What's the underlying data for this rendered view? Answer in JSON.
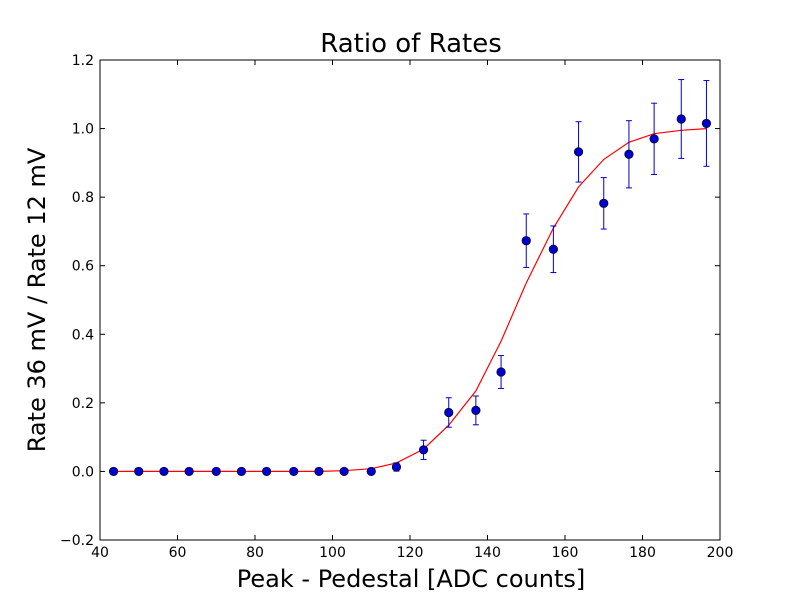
{
  "chart_data": {
    "type": "scatter",
    "title": "Ratio of Rates",
    "xlabel": "Peak - Pedestal [ADC counts]",
    "ylabel": "Rate 36 mV / Rate 12 mV",
    "xlim": [
      40,
      200
    ],
    "ylim": [
      -0.2,
      1.2
    ],
    "xticks": [
      "40",
      "60",
      "80",
      "100",
      "120",
      "140",
      "160",
      "180",
      "200"
    ],
    "yticks": [
      "−0.2",
      "0.0",
      "0.2",
      "0.4",
      "0.6",
      "0.8",
      "1.0",
      "1.2"
    ],
    "grid": false,
    "series": [
      {
        "kind": "points-with-error-bars",
        "color": "#0000cc",
        "errbar_color": "#0000cc",
        "x": [
          43.5,
          50,
          56.5,
          63,
          70,
          76.5,
          83,
          90,
          96.5,
          103,
          110,
          116.5,
          123.5,
          130,
          137,
          143.5,
          150,
          157,
          163.5,
          170,
          176.5,
          183,
          190,
          196.5
        ],
        "y": [
          0.0,
          0.0,
          0.0,
          0.0,
          0.0,
          0.0,
          0.0,
          0.0,
          0.0,
          0.0,
          0.0,
          0.013,
          0.063,
          0.172,
          0.178,
          0.29,
          0.673,
          0.648,
          0.932,
          0.782,
          0.925,
          0.97,
          1.028,
          1.015
        ],
        "err": [
          0.0,
          0.0,
          0.0,
          0.0,
          0.0,
          0.0,
          0.0,
          0.0,
          0.0,
          0.0,
          0.0,
          0.012,
          0.028,
          0.043,
          0.042,
          0.048,
          0.078,
          0.068,
          0.088,
          0.075,
          0.098,
          0.104,
          0.115,
          0.125
        ]
      },
      {
        "kind": "fit-line",
        "color": "#ff0000",
        "x": [
          43.5,
          50,
          56.5,
          63,
          70,
          76.5,
          83,
          90,
          96.5,
          103,
          110,
          116.5,
          123.5,
          130,
          137,
          143.5,
          150,
          157,
          163.5,
          170,
          176.5,
          183,
          190,
          196.5
        ],
        "y": [
          0.0,
          0.0,
          0.0,
          0.0,
          0.0,
          0.0,
          0.0,
          0.0,
          0.0,
          0.002,
          0.008,
          0.025,
          0.065,
          0.135,
          0.235,
          0.38,
          0.55,
          0.71,
          0.83,
          0.91,
          0.96,
          0.985,
          0.995,
          1.0
        ]
      }
    ]
  }
}
